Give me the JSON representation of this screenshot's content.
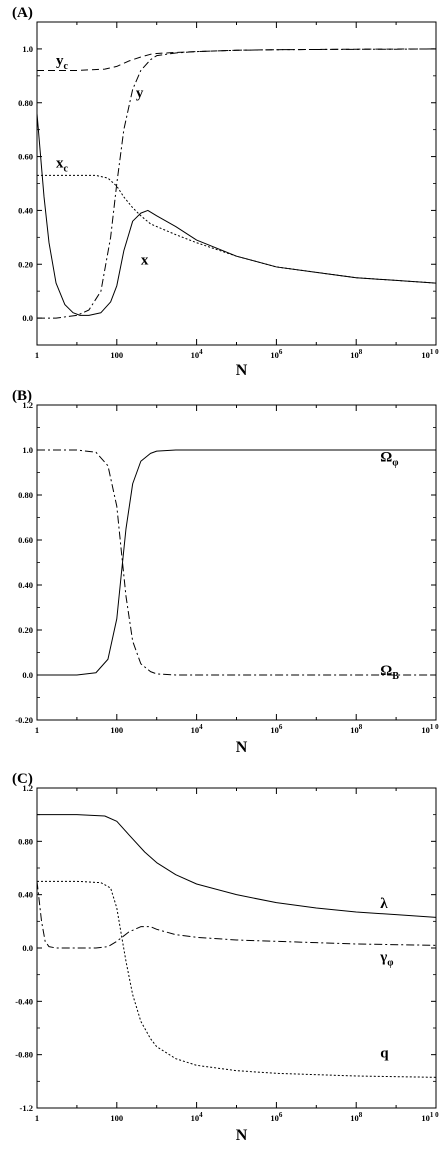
{
  "chart_data": [
    {
      "type": "line",
      "panel_label": "(A)",
      "xlabel": "N",
      "xscale": "log",
      "xlim": [
        1,
        10000000000
      ],
      "ylim": [
        -0.1,
        1.1
      ],
      "yticks": [
        0.0,
        0.2,
        0.4,
        0.6,
        0.8,
        1.0
      ],
      "ytick_labels": [
        "0.0",
        "0.20",
        "0.40",
        "0.60",
        "0.80",
        "1.0"
      ],
      "xticks": [
        1,
        100,
        10000,
        1000000,
        100000000,
        10000000000
      ],
      "xtick_labels": [
        {
          "base": "1",
          "sup": ""
        },
        {
          "base": "100",
          "sup": ""
        },
        {
          "base": "10",
          "sup": "4"
        },
        {
          "base": "10",
          "sup": "6"
        },
        {
          "base": "10",
          "sup": "8"
        },
        {
          "base": "10",
          "sup": "1 0"
        }
      ],
      "series": [
        {
          "name": "x",
          "style": "solid",
          "x": [
            1,
            1.5,
            2,
            3,
            5,
            8,
            12,
            20,
            40,
            70,
            100,
            150,
            250,
            400,
            600,
            1000,
            3000,
            10000,
            100000,
            1000000,
            10000000,
            100000000,
            1000000000,
            10000000000
          ],
          "y": [
            0.76,
            0.45,
            0.28,
            0.13,
            0.05,
            0.02,
            0.01,
            0.01,
            0.02,
            0.06,
            0.12,
            0.25,
            0.36,
            0.39,
            0.4,
            0.38,
            0.34,
            0.29,
            0.23,
            0.19,
            0.17,
            0.15,
            0.14,
            0.13
          ]
        },
        {
          "name": "xc",
          "style": "dotted",
          "x": [
            1,
            3,
            10,
            30,
            60,
            100,
            150,
            250,
            400,
            700,
            1000,
            3000,
            10000,
            100000,
            1000000,
            10000000,
            100000000,
            1000000000,
            10000000000
          ],
          "y": [
            0.53,
            0.53,
            0.53,
            0.53,
            0.52,
            0.49,
            0.45,
            0.41,
            0.38,
            0.35,
            0.34,
            0.31,
            0.28,
            0.23,
            0.19,
            0.17,
            0.15,
            0.14,
            0.13
          ]
        },
        {
          "name": "y",
          "style": "dashdot",
          "x": [
            1,
            3,
            10,
            20,
            40,
            70,
            100,
            150,
            250,
            400,
            700,
            1000,
            3000,
            10000,
            100000,
            1000000,
            10000000,
            1000000000,
            10000000000
          ],
          "y": [
            0.0,
            0.0,
            0.01,
            0.03,
            0.1,
            0.3,
            0.5,
            0.7,
            0.85,
            0.92,
            0.96,
            0.975,
            0.985,
            0.99,
            0.995,
            0.997,
            0.998,
            0.999,
            1.0
          ]
        },
        {
          "name": "yc",
          "style": "dashed",
          "x": [
            1,
            10,
            50,
            100,
            200,
            400,
            700,
            1000,
            3000,
            10000,
            100000,
            1000000,
            100000000,
            10000000000
          ],
          "y": [
            0.92,
            0.92,
            0.925,
            0.935,
            0.955,
            0.97,
            0.98,
            0.983,
            0.987,
            0.99,
            0.995,
            0.997,
            0.999,
            1.0
          ]
        }
      ],
      "annotations": [
        {
          "text": "y",
          "sub": "c",
          "x": 3,
          "y": 0.94
        },
        {
          "text": "y",
          "sub": "",
          "x": 300,
          "y": 0.82
        },
        {
          "text": "x",
          "sub": "c",
          "x": 3,
          "y": 0.56
        },
        {
          "text": "x",
          "sub": "",
          "x": 400,
          "y": 0.2
        }
      ]
    },
    {
      "type": "line",
      "panel_label": "(B)",
      "xlabel": "N",
      "xscale": "log",
      "xlim": [
        1,
        10000000000
      ],
      "ylim": [
        -0.2,
        1.2
      ],
      "yticks": [
        -0.2,
        0.0,
        0.2,
        0.4,
        0.6,
        0.8,
        1.0,
        1.2
      ],
      "ytick_labels": [
        "-0.20",
        "0.0",
        "0.20",
        "0.40",
        "0.60",
        "0.80",
        "1.0",
        "1.2"
      ],
      "xticks": [
        1,
        100,
        10000,
        1000000,
        100000000,
        10000000000
      ],
      "xtick_labels": [
        {
          "base": "1",
          "sup": ""
        },
        {
          "base": "100",
          "sup": ""
        },
        {
          "base": "10",
          "sup": "4"
        },
        {
          "base": "10",
          "sup": "6"
        },
        {
          "base": "10",
          "sup": "8"
        },
        {
          "base": "10",
          "sup": "1 0"
        }
      ],
      "series": [
        {
          "name": "Omega_phi",
          "style": "solid",
          "x": [
            1,
            10,
            30,
            60,
            100,
            130,
            170,
            250,
            400,
            700,
            1000,
            3000,
            10000,
            1000000,
            10000000000
          ],
          "y": [
            0.0,
            0.0,
            0.01,
            0.07,
            0.25,
            0.45,
            0.65,
            0.85,
            0.95,
            0.985,
            0.995,
            1.0,
            1.0,
            1.0,
            1.0
          ]
        },
        {
          "name": "Omega_B",
          "style": "dashdot",
          "x": [
            1,
            10,
            30,
            60,
            100,
            130,
            170,
            250,
            400,
            700,
            1000,
            3000,
            10000,
            1000000,
            10000000000
          ],
          "y": [
            1.0,
            1.0,
            0.99,
            0.93,
            0.75,
            0.55,
            0.35,
            0.15,
            0.05,
            0.015,
            0.005,
            0.0,
            0.0,
            0.0,
            0.0
          ]
        }
      ],
      "annotations": [
        {
          "text": "Ω",
          "sub": "φ",
          "x": 400000000,
          "y": 0.95
        },
        {
          "text": "Ω",
          "sub": "B",
          "x": 400000000,
          "y": 0.0
        }
      ]
    },
    {
      "type": "line",
      "panel_label": "(C)",
      "xlabel": "N",
      "xscale": "log",
      "xlim": [
        1,
        10000000000
      ],
      "ylim": [
        -1.2,
        1.2
      ],
      "yticks": [
        -1.2,
        -0.8,
        -0.4,
        0.0,
        0.4,
        0.8,
        1.2
      ],
      "ytick_labels": [
        "-1.2",
        "-0.80",
        "-0.40",
        "0.0",
        "0.40",
        "0.80",
        "1.2"
      ],
      "xticks": [
        1,
        100,
        10000,
        1000000,
        100000000,
        10000000000
      ],
      "xtick_labels": [
        {
          "base": "1",
          "sup": ""
        },
        {
          "base": "100",
          "sup": ""
        },
        {
          "base": "10",
          "sup": "4"
        },
        {
          "base": "10",
          "sup": "6"
        },
        {
          "base": "10",
          "sup": "8"
        },
        {
          "base": "10",
          "sup": "1 0"
        }
      ],
      "series": [
        {
          "name": "lambda",
          "style": "solid",
          "x": [
            1,
            10,
            50,
            100,
            200,
            500,
            1000,
            3000,
            10000,
            100000,
            1000000,
            10000000,
            100000000,
            1000000000,
            10000000000
          ],
          "y": [
            1.0,
            1.0,
            0.99,
            0.95,
            0.85,
            0.72,
            0.64,
            0.55,
            0.48,
            0.4,
            0.34,
            0.3,
            0.27,
            0.25,
            0.23
          ]
        },
        {
          "name": "gamma_phi",
          "style": "dashdot",
          "x": [
            1,
            1.3,
            1.6,
            2,
            3,
            5,
            10,
            30,
            60,
            100,
            200,
            400,
            700,
            1000,
            3000,
            10000,
            100000,
            1000000,
            10000000,
            100000000,
            10000000000
          ],
          "y": [
            0.5,
            0.2,
            0.05,
            0.01,
            0.0,
            0.0,
            0.0,
            0.0,
            0.01,
            0.05,
            0.12,
            0.16,
            0.16,
            0.14,
            0.1,
            0.08,
            0.06,
            0.05,
            0.04,
            0.03,
            0.02
          ]
        },
        {
          "name": "q",
          "style": "dotted",
          "x": [
            1,
            10,
            40,
            70,
            100,
            130,
            170,
            250,
            400,
            700,
            1000,
            3000,
            10000,
            100000,
            1000000,
            10000000,
            100000000,
            10000000000
          ],
          "y": [
            0.5,
            0.5,
            0.49,
            0.45,
            0.3,
            0.1,
            -0.1,
            -0.35,
            -0.55,
            -0.68,
            -0.74,
            -0.83,
            -0.88,
            -0.92,
            -0.94,
            -0.95,
            -0.96,
            -0.97
          ]
        }
      ],
      "annotations": [
        {
          "text": "λ",
          "sub": "",
          "x": 400000000,
          "y": 0.3
        },
        {
          "text": "γ",
          "sub": "φ",
          "x": 400000000,
          "y": -0.1
        },
        {
          "text": "q",
          "sub": "",
          "x": 400000000,
          "y": -0.82
        }
      ]
    }
  ]
}
